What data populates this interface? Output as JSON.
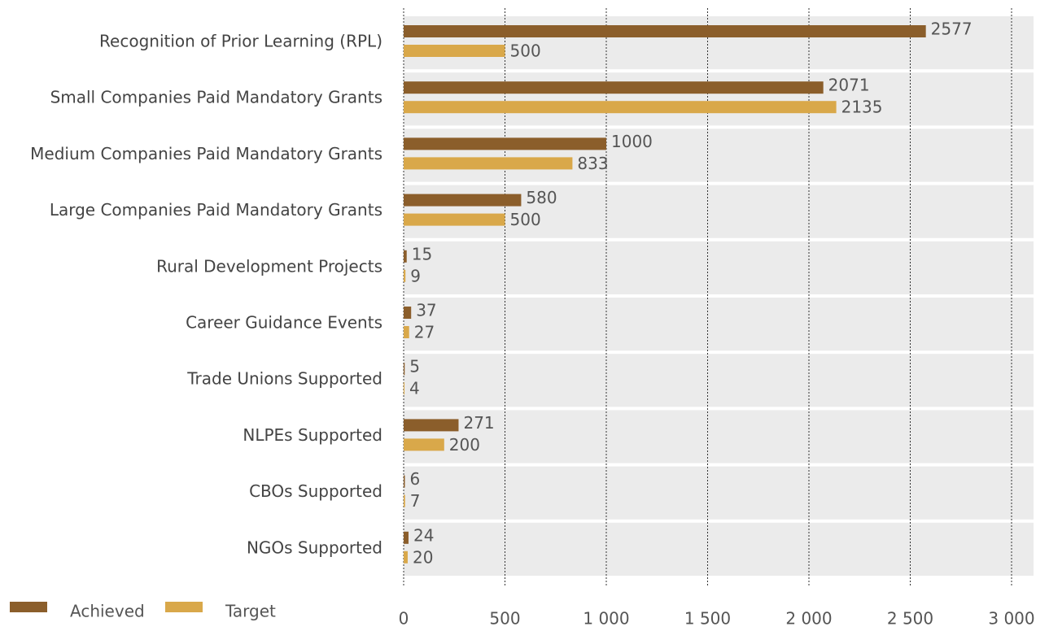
{
  "chart_data": {
    "type": "hbar",
    "categories": [
      "Recognition of Prior Learning (RPL)",
      "Small Companies Paid Mandatory Grants",
      "Medium Companies Paid Mandatory Grants",
      "Large Companies Paid Mandatory Grants",
      "Rural Development Projects",
      "Career Guidance Events",
      "Trade Unions Supported",
      "NLPEs Supported",
      "CBOs Supported",
      "NGOs Supported"
    ],
    "series": [
      {
        "name": "Achieved",
        "color": "#8b5e2b",
        "values": [
          2577,
          2071,
          1000,
          580,
          15,
          37,
          5,
          271,
          6,
          24
        ]
      },
      {
        "name": "Target",
        "color": "#d9a84a",
        "values": [
          500,
          2135,
          833,
          500,
          9,
          27,
          4,
          200,
          7,
          20
        ]
      }
    ],
    "xlim": [
      0,
      3000
    ],
    "xticks": [
      0,
      500,
      {
        "value": 1000,
        "label": "1 000"
      },
      {
        "value": 1500,
        "label": "1 500"
      },
      {
        "value": 2000,
        "label": "2 000"
      },
      {
        "value": 2500,
        "label": "2 500"
      },
      {
        "value": 3000,
        "label": "3 000"
      }
    ],
    "grid": true,
    "legend": "bottom-left"
  }
}
